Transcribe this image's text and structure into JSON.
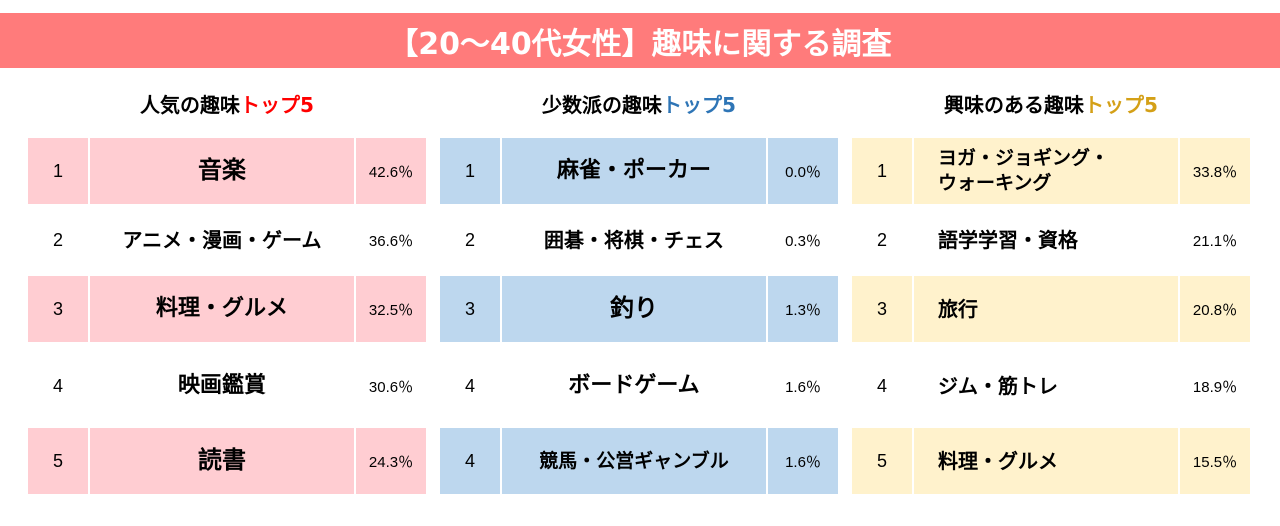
{
  "banner": {
    "title": "【20～40代女性】趣味に関する調査"
  },
  "colors": {
    "banner": "#ff7b7b",
    "pink_row": "#ffcdd2",
    "blue_row": "#bdd7ee",
    "yellow_row": "#fff2cc",
    "accent_red": "#ff0000",
    "accent_blue": "#2e75b6",
    "accent_gold": "#d4a017"
  },
  "popular": {
    "heading_prefix": "人気の趣味",
    "heading_accent": "トップ5",
    "rows": [
      {
        "rank": "1",
        "name": "音楽",
        "pct": "42.6％"
      },
      {
        "rank": "2",
        "name": "アニメ・漫画・ゲーム",
        "pct": "36.6％"
      },
      {
        "rank": "3",
        "name": "料理・グルメ",
        "pct": "32.5％"
      },
      {
        "rank": "4",
        "name": "映画鑑賞",
        "pct": "30.6％"
      },
      {
        "rank": "5",
        "name": "読書",
        "pct": "24.3％"
      }
    ]
  },
  "minority": {
    "heading_prefix": "少数派の趣味",
    "heading_accent": "トップ5",
    "rows": [
      {
        "rank": "1",
        "name": "麻雀・ポーカー",
        "pct": "0.0％"
      },
      {
        "rank": "2",
        "name": "囲碁・将棋・チェス",
        "pct": "0.3％"
      },
      {
        "rank": "3",
        "name": "釣り",
        "pct": "1.3％"
      },
      {
        "rank": "4",
        "name": "ボードゲーム",
        "pct": "1.6％"
      },
      {
        "rank": "4",
        "name": "競馬・公営ギャンブル",
        "pct": "1.6％"
      }
    ]
  },
  "interest": {
    "heading_prefix": "興味のある趣味",
    "heading_accent": "トップ5",
    "rows": [
      {
        "rank": "1",
        "name_line1": "ヨガ・ジョギング・",
        "name_line2": "ウォーキング",
        "pct": "33.8％"
      },
      {
        "rank": "2",
        "name": "語学学習・資格",
        "pct": "21.1％"
      },
      {
        "rank": "3",
        "name": "旅行",
        "pct": "20.8％"
      },
      {
        "rank": "4",
        "name": "ジム・筋トレ",
        "pct": "18.9％"
      },
      {
        "rank": "5",
        "name": "料理・グルメ",
        "pct": "15.5％"
      }
    ]
  }
}
